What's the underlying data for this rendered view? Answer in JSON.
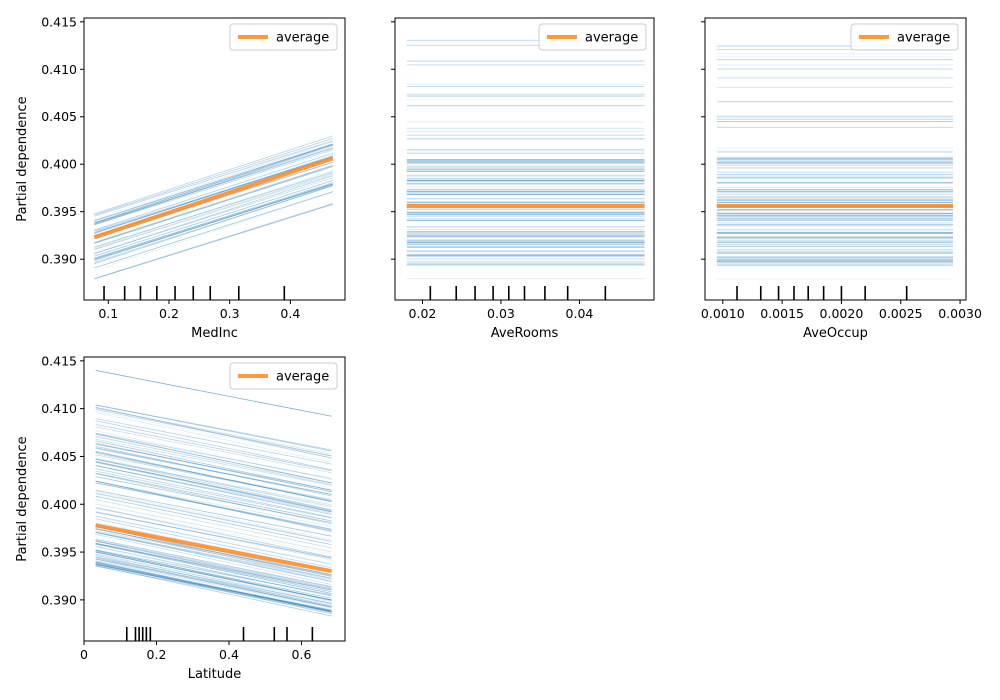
{
  "chart_data": [
    {
      "type": "line",
      "title": "",
      "xlabel": "MedInc",
      "ylabel": "Partial dependence",
      "xlim": [
        0.06,
        0.49
      ],
      "ylim": [
        0.3857,
        0.4154
      ],
      "xticks": [
        0.1,
        0.2,
        0.3,
        0.4
      ],
      "yticks": [
        0.39,
        0.395,
        0.4,
        0.405,
        0.41,
        0.415
      ],
      "show_ytick_labels": true,
      "legend": {
        "position": "top-right",
        "entries": [
          "average"
        ]
      },
      "grid": false,
      "x_range": [
        0.077,
        0.47
      ],
      "ice": {
        "start_min": 0.3878,
        "start_max": 0.3948,
        "end_min": 0.3958,
        "end_max": 0.4029,
        "count": 50
      },
      "average": {
        "name": "average",
        "x": [
          0.077,
          0.47
        ],
        "y": [
          0.3923,
          0.4006
        ]
      },
      "deciles": [
        0.093,
        0.127,
        0.153,
        0.18,
        0.21,
        0.24,
        0.268,
        0.315,
        0.39
      ]
    },
    {
      "type": "line",
      "title": "",
      "xlabel": "AveRooms",
      "ylabel": "",
      "xlim": [
        0.0165,
        0.0495
      ],
      "ylim": [
        0.3857,
        0.4154
      ],
      "xticks": [
        0.02,
        0.03,
        0.04
      ],
      "yticks": [
        0.39,
        0.395,
        0.4,
        0.405,
        0.41,
        0.415
      ],
      "show_ytick_labels": false,
      "legend": {
        "position": "top-right",
        "entries": [
          "average"
        ]
      },
      "grid": false,
      "x_range": [
        0.018,
        0.0483
      ],
      "ice": {
        "min": 0.3875,
        "max": 0.4135,
        "dense_min": 0.3893,
        "dense_max": 0.4005,
        "count": 130
      },
      "average": {
        "name": "average",
        "x": [
          0.018,
          0.0483
        ],
        "y": [
          0.3956,
          0.3956
        ]
      },
      "deciles": [
        0.021,
        0.0243,
        0.0267,
        0.029,
        0.031,
        0.033,
        0.0356,
        0.0385,
        0.0433
      ]
    },
    {
      "type": "line",
      "title": "",
      "xlabel": "AveOccup",
      "ylabel": "",
      "xlim": [
        0.00085,
        0.00305
      ],
      "ylim": [
        0.3857,
        0.4154
      ],
      "xticks": [
        0.001,
        0.0015,
        0.002,
        0.0025,
        0.003
      ],
      "xtick_labels": [
        "0.0010",
        "0.0015",
        "0.0020",
        "0.0025",
        "0.0030"
      ],
      "yticks": [
        0.39,
        0.395,
        0.4,
        0.405,
        0.41,
        0.415
      ],
      "show_ytick_labels": false,
      "legend": {
        "position": "top-right",
        "entries": [
          "average"
        ]
      },
      "grid": false,
      "x_range": [
        0.00095,
        0.00294
      ],
      "ice": {
        "min": 0.3875,
        "max": 0.4132,
        "dense_min": 0.3893,
        "dense_max": 0.401,
        "count": 130
      },
      "average": {
        "name": "average",
        "x": [
          0.00095,
          0.00294
        ],
        "y": [
          0.3956,
          0.3956
        ]
      },
      "deciles": [
        0.00112,
        0.00132,
        0.00147,
        0.0016,
        0.00172,
        0.00185,
        0.002,
        0.0022,
        0.00255
      ]
    },
    {
      "type": "line",
      "title": "",
      "xlabel": "Latitude",
      "ylabel": "Partial dependence",
      "xlim": [
        0.0,
        0.72
      ],
      "ylim": [
        0.3857,
        0.4154
      ],
      "xticks": [
        0.0,
        0.2,
        0.4,
        0.6
      ],
      "yticks": [
        0.39,
        0.395,
        0.4,
        0.405,
        0.41,
        0.415
      ],
      "show_ytick_labels": true,
      "legend": {
        "position": "top-right",
        "entries": [
          "average"
        ]
      },
      "grid": false,
      "x_range": [
        0.032,
        0.683
      ],
      "ice": {
        "start_min": 0.3935,
        "start_max": 0.4105,
        "end_min": 0.3885,
        "end_max": 0.4055,
        "count": 130,
        "outlier": [
          0.414,
          0.4092
        ]
      },
      "average": {
        "name": "average",
        "x": [
          0.032,
          0.683
        ],
        "y": [
          0.3978,
          0.393
        ]
      },
      "deciles": [
        0.118,
        0.142,
        0.152,
        0.162,
        0.172,
        0.183,
        0.44,
        0.525,
        0.56,
        0.63
      ]
    }
  ]
}
